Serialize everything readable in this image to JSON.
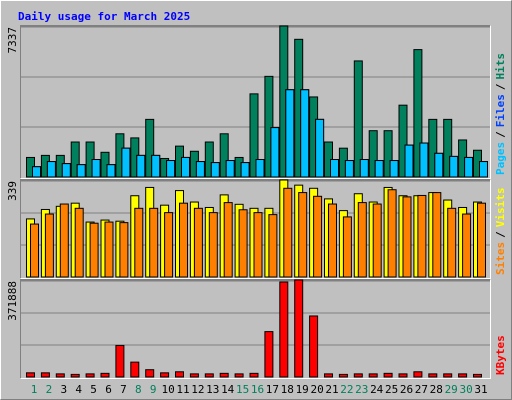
{
  "chart_data": [
    {
      "type": "bar",
      "title": "Daily usage for March 2025",
      "legend_separator": "/",
      "ylim": [
        0,
        7337
      ],
      "yticks": [
        7337
      ],
      "grid": true,
      "series": [
        {
          "name": "Hits",
          "color": "#00805c",
          "values": [
            950,
            1050,
            1050,
            1700,
            1700,
            1200,
            2100,
            1900,
            2800,
            900,
            1500,
            1250,
            1700,
            2100,
            950,
            4040,
            4890,
            7337,
            6690,
            3890,
            1700,
            1400,
            5640,
            2250,
            2250,
            3490,
            6190,
            2800,
            2800,
            1800,
            1300
          ]
        },
        {
          "name": "Files",
          "color": "#0040ff",
          "values": [
            500,
            750,
            650,
            600,
            850,
            600,
            1400,
            1050,
            1050,
            800,
            950,
            750,
            700,
            800,
            700,
            850,
            2400,
            4240,
            4240,
            2800,
            850,
            800,
            850,
            800,
            800,
            1550,
            1650,
            1150,
            1000,
            950,
            750
          ]
        },
        {
          "name": "Pages",
          "color": "#00c0ff",
          "values": [
            500,
            750,
            650,
            600,
            850,
            600,
            1400,
            1050,
            1050,
            800,
            950,
            750,
            700,
            800,
            700,
            850,
            2400,
            4240,
            4240,
            2800,
            850,
            800,
            850,
            800,
            800,
            1550,
            1650,
            1150,
            1000,
            950,
            750
          ]
        }
      ]
    },
    {
      "type": "bar",
      "ylim": [
        0,
        339
      ],
      "yticks": [
        339
      ],
      "grid": true,
      "series": [
        {
          "name": "Visits",
          "color": "#ffff00",
          "values": [
            203,
            236,
            247,
            258,
            192,
            199,
            195,
            284,
            313,
            251,
            302,
            262,
            243,
            287,
            254,
            240,
            240,
            339,
            321,
            310,
            273,
            232,
            291,
            262,
            313,
            284,
            284,
            295,
            269,
            243,
            262
          ]
        },
        {
          "name": "Sites",
          "color": "#ff8000",
          "values": [
            185,
            220,
            255,
            240,
            188,
            192,
            190,
            240,
            240,
            225,
            258,
            240,
            225,
            260,
            235,
            225,
            218,
            310,
            295,
            282,
            255,
            210,
            260,
            255,
            305,
            280,
            285,
            295,
            240,
            220,
            258
          ]
        }
      ]
    },
    {
      "type": "bar",
      "ylim": [
        0,
        371888
      ],
      "yticks": [
        371888
      ],
      "grid": true,
      "categories": [
        "1",
        "2",
        "3",
        "4",
        "5",
        "6",
        "7",
        "8",
        "9",
        "10",
        "11",
        "12",
        "13",
        "14",
        "15",
        "16",
        "17",
        "18",
        "19",
        "20",
        "21",
        "22",
        "23",
        "24",
        "25",
        "26",
        "27",
        "28",
        "29",
        "30",
        "31"
      ],
      "category_colors": [
        "#00805c",
        "#00805c",
        "#000000",
        "#000000",
        "#000000",
        "#000000",
        "#000000",
        "#00805c",
        "#00805c",
        "#000000",
        "#000000",
        "#000000",
        "#000000",
        "#000000",
        "#00805c",
        "#00805c",
        "#000000",
        "#000000",
        "#000000",
        "#000000",
        "#000000",
        "#00805c",
        "#00805c",
        "#000000",
        "#000000",
        "#000000",
        "#000000",
        "#000000",
        "#00805c",
        "#00805c",
        "#000000"
      ],
      "series": [
        {
          "name": "KBytes",
          "color": "#ff0000",
          "values": [
            16000,
            16000,
            12000,
            10000,
            12000,
            14000,
            121000,
            57000,
            28000,
            16000,
            20000,
            12000,
            12000,
            14000,
            12000,
            14000,
            174000,
            364000,
            371888,
            234000,
            12000,
            10000,
            12000,
            12000,
            14000,
            12000,
            20000,
            12000,
            12000,
            12000,
            10000
          ]
        }
      ]
    }
  ]
}
